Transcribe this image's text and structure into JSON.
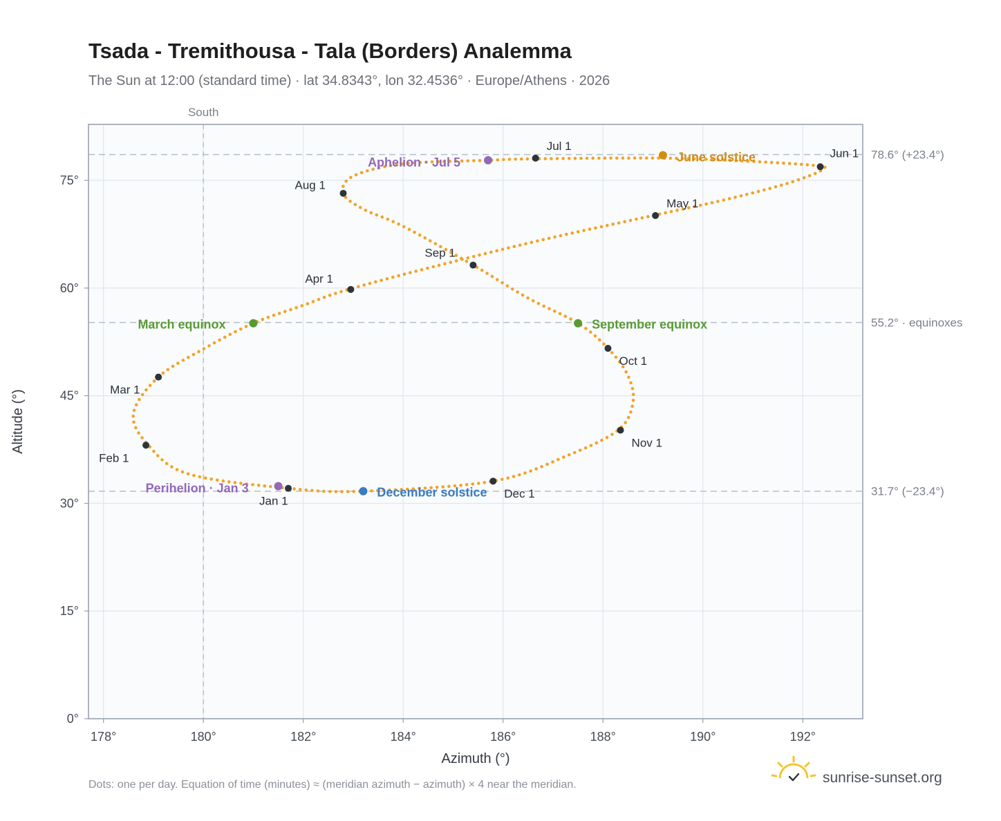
{
  "title": "Tsada - Tremithousa - Tala (Borders) Analemma",
  "subtitle": "The Sun at 12:00 (standard time) · lat 34.8343°, lon 32.4536° · Europe/Athens · 2026",
  "footnote": "Dots: one per day. Equation of time (minutes) ≈ (meridian azimuth − azimuth) × 4 near the meridian.",
  "brand": {
    "name": "sunrise-sunset.org",
    "icon": "sun-check-icon"
  },
  "colors": {
    "curve": "#f2a325",
    "month_marker": "#2d333b",
    "equinox": "#5a9a35",
    "june_solstice": "#d48c12",
    "december_solstice": "#3b7cc2",
    "apsis": "#9368b7",
    "plot_bg": "#f9fbfd",
    "grid": "#e2e7ee",
    "frame": "#9aa3af",
    "reference": "#b4bfcb"
  },
  "chart_data": {
    "type": "scatter",
    "xlabel": "Azimuth (°)",
    "ylabel": "Altitude (°)",
    "xlim": [
      177.7,
      193.2
    ],
    "ylim": [
      0,
      82.8
    ],
    "x_ticks": [
      178,
      180,
      182,
      184,
      186,
      188,
      190,
      192
    ],
    "x_tick_labels": [
      "178°",
      "180°",
      "182°",
      "184°",
      "186°",
      "188°",
      "190°",
      "192°"
    ],
    "y_ticks": [
      0,
      15,
      30,
      45,
      60,
      75
    ],
    "y_tick_labels": [
      "0°",
      "15°",
      "30°",
      "45°",
      "60°",
      "75°"
    ],
    "grid": true,
    "meridian": {
      "azimuth": 180,
      "label": "South"
    },
    "reference_lines": [
      {
        "altitude": 78.6,
        "label": "78.6° (+23.4°)"
      },
      {
        "altitude": 55.2,
        "label": "55.2° · equinoxes"
      },
      {
        "altitude": 31.7,
        "label": "31.7° (−23.4°)"
      }
    ],
    "series": [
      {
        "points": [
          [
            181.7,
            32.1
          ],
          [
            179.7,
            34.1
          ],
          [
            178.9,
            38.1
          ],
          [
            178.6,
            42.5
          ],
          [
            179.1,
            47.6
          ],
          [
            180.0,
            51.5
          ],
          [
            181.0,
            55.1
          ],
          [
            182.0,
            57.6
          ],
          [
            182.9,
            59.8
          ],
          [
            184.9,
            63.5
          ],
          [
            186.9,
            66.9
          ],
          [
            189.0,
            70.1
          ],
          [
            190.5,
            72.4
          ],
          [
            191.7,
            74.6
          ],
          [
            192.4,
            76.5
          ],
          [
            192.2,
            77.1
          ],
          [
            190.8,
            77.7
          ],
          [
            189.2,
            78.1
          ],
          [
            186.6,
            78.0
          ],
          [
            185.7,
            77.8
          ],
          [
            184.0,
            77.3
          ],
          [
            183.0,
            75.6
          ],
          [
            182.8,
            73.2
          ],
          [
            183.2,
            71.0
          ],
          [
            184.0,
            68.6
          ],
          [
            185.4,
            63.2
          ],
          [
            186.5,
            58.6
          ],
          [
            187.5,
            55.1
          ],
          [
            188.1,
            51.6
          ],
          [
            188.5,
            47.8
          ],
          [
            188.6,
            44.0
          ],
          [
            188.3,
            40.2
          ],
          [
            187.3,
            36.7
          ],
          [
            185.8,
            33.1
          ],
          [
            183.2,
            31.7
          ],
          [
            181.7,
            32.1
          ]
        ]
      }
    ],
    "month_markers": [
      {
        "label": "Jan 1",
        "x": 181.7,
        "y": 32.1
      },
      {
        "label": "Feb 1",
        "x": 178.85,
        "y": 38.1
      },
      {
        "label": "Mar 1",
        "x": 179.1,
        "y": 47.6
      },
      {
        "label": "Apr 1",
        "x": 182.95,
        "y": 59.8
      },
      {
        "label": "May 1",
        "x": 189.05,
        "y": 70.1
      },
      {
        "label": "Jun 1",
        "x": 192.35,
        "y": 76.9
      },
      {
        "label": "Jul 1",
        "x": 186.65,
        "y": 78.1
      },
      {
        "label": "Aug 1",
        "x": 182.8,
        "y": 73.2
      },
      {
        "label": "Sep 1",
        "x": 185.4,
        "y": 63.2
      },
      {
        "label": "Oct 1",
        "x": 188.1,
        "y": 51.6
      },
      {
        "label": "Nov 1",
        "x": 188.35,
        "y": 40.2
      },
      {
        "label": "Dec 1",
        "x": 185.8,
        "y": 33.1
      }
    ],
    "events": [
      {
        "label": "March equinox",
        "x": 181.0,
        "y": 55.1,
        "color_key": "equinox"
      },
      {
        "label": "September equinox",
        "x": 187.5,
        "y": 55.1,
        "color_key": "equinox"
      },
      {
        "label": "June solstice",
        "x": 189.2,
        "y": 78.5,
        "color_key": "june_solstice"
      },
      {
        "label": "December solstice",
        "x": 183.2,
        "y": 31.7,
        "color_key": "december_solstice"
      },
      {
        "label": "Aphelion · Jul 5",
        "x": 185.7,
        "y": 77.8,
        "color_key": "apsis"
      },
      {
        "label": "Perihelion · Jan 3",
        "x": 181.5,
        "y": 32.4,
        "color_key": "apsis"
      }
    ]
  }
}
